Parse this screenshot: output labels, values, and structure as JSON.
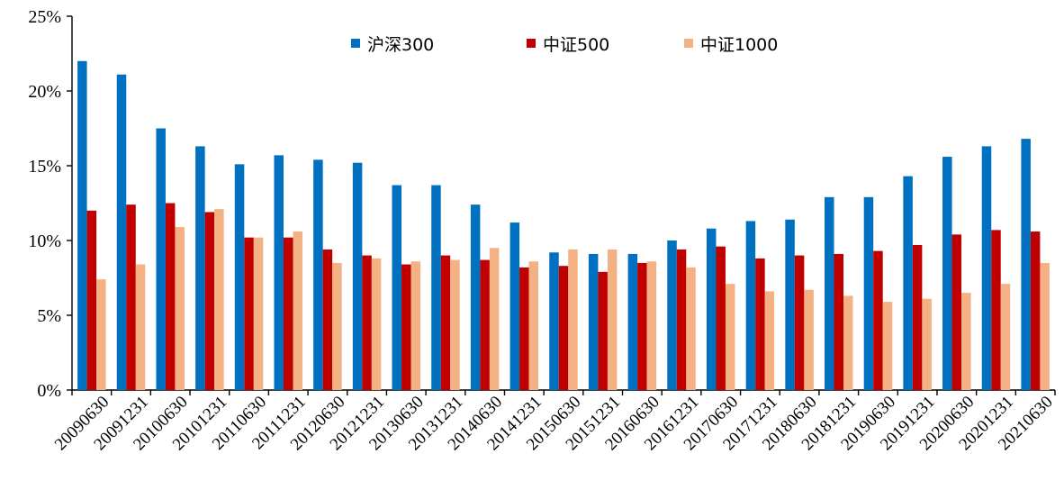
{
  "chart_data": {
    "type": "bar",
    "categories": [
      "20090630",
      "20091231",
      "20100630",
      "20101231",
      "20110630",
      "20111231",
      "20120630",
      "20121231",
      "20130630",
      "20131231",
      "20140630",
      "20141231",
      "20150630",
      "20151231",
      "20160630",
      "20161231",
      "20170630",
      "20171231",
      "20180630",
      "20181231",
      "20190630",
      "20191231",
      "20200630",
      "20201231",
      "20210630"
    ],
    "series": [
      {
        "name": "沪深300",
        "color": "#0070C0",
        "values": [
          22.0,
          21.1,
          17.5,
          16.3,
          15.1,
          15.7,
          15.4,
          15.2,
          13.7,
          13.7,
          12.4,
          11.2,
          9.2,
          9.1,
          9.1,
          10.0,
          10.8,
          11.3,
          11.4,
          12.9,
          12.9,
          14.3,
          15.6,
          16.3,
          16.8
        ]
      },
      {
        "name": "中证500",
        "color": "#C00000",
        "values": [
          12.0,
          12.4,
          12.5,
          11.9,
          10.2,
          10.2,
          9.4,
          9.0,
          8.4,
          9.0,
          8.7,
          8.2,
          8.3,
          7.9,
          8.5,
          9.4,
          9.6,
          8.8,
          9.0,
          9.1,
          9.3,
          9.7,
          10.4,
          10.7,
          10.6
        ]
      },
      {
        "name": "中证1000",
        "color": "#F4B183",
        "values": [
          7.4,
          8.4,
          10.9,
          12.1,
          10.2,
          10.6,
          8.5,
          8.8,
          8.6,
          8.7,
          9.5,
          8.6,
          9.4,
          9.4,
          8.6,
          8.2,
          7.1,
          6.6,
          6.7,
          6.3,
          5.9,
          6.1,
          6.5,
          7.1,
          8.5
        ]
      }
    ],
    "y_ticks": [
      "0%",
      "5%",
      "10%",
      "15%",
      "20%",
      "25%"
    ],
    "ylim": [
      0,
      25
    ],
    "legend_position": "top-center",
    "grid": false
  }
}
